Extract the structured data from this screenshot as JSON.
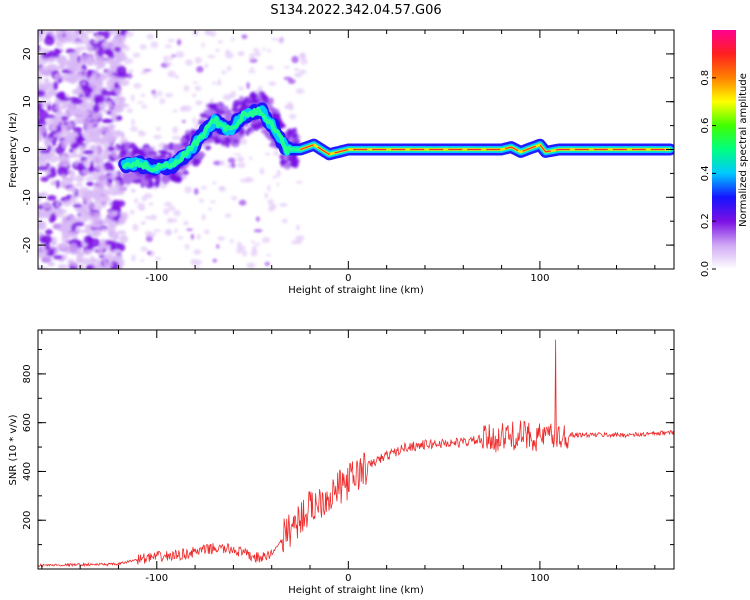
{
  "figure": {
    "title": "S134.2022.342.04.57.G06"
  },
  "chart_data": [
    {
      "type": "heatmap",
      "xlabel": "Height of straight line (km)",
      "ylabel": "Frequency (Hz)",
      "xlim": [
        -162,
        170
      ],
      "ylim": [
        -25,
        25
      ],
      "xticks": [
        -100,
        0,
        100
      ],
      "yticks": [
        -20,
        -10,
        0,
        10,
        20
      ],
      "ridge": {
        "x": [
          -117,
          -110,
          -100,
          -90,
          -80,
          -70,
          -62,
          -55,
          -45,
          -38,
          -32,
          -25,
          -18,
          -10,
          0,
          30,
          60,
          80,
          85,
          90,
          100,
          103,
          110,
          140,
          168
        ],
        "freq": [
          -3,
          -3,
          -4,
          -3,
          1,
          6,
          4,
          7,
          8,
          4,
          0,
          0,
          1,
          -1,
          0,
          0,
          0,
          0,
          0.5,
          -0.5,
          1,
          -0.5,
          0,
          0,
          0
        ]
      },
      "colorbar": {
        "label": "Normalized spectral amplitude",
        "range": [
          0,
          1
        ],
        "ticks": [
          "0.0",
          "0.2",
          "0.4",
          "0.6",
          "0.8"
        ],
        "colors": [
          "#ffffff",
          "#cfa8f4",
          "#7b10e4",
          "#1414ff",
          "#00c8ff",
          "#00ff80",
          "#40ff00",
          "#ffff00",
          "#ff8000",
          "#ff2020",
          "#ff0090"
        ]
      }
    },
    {
      "type": "line",
      "xlabel": "Height of straight line (km)",
      "ylabel": "SNR (10 * v/v)",
      "xlim": [
        -162,
        170
      ],
      "ylim": [
        0,
        980
      ],
      "xticks": [
        -100,
        0,
        100
      ],
      "yticks": [
        200,
        400,
        600,
        800
      ],
      "series": [
        {
          "color": "#ee2b2b",
          "x": [
            -162,
            -120,
            -110,
            -100,
            -90,
            -80,
            -70,
            -60,
            -50,
            -45,
            -40,
            -35,
            -30,
            -25,
            -20,
            -15,
            -10,
            -5,
            0,
            5,
            10,
            15,
            20,
            25,
            30,
            35,
            40,
            50,
            60,
            70,
            80,
            85,
            90,
            95,
            100,
            105,
            110,
            120,
            130,
            140,
            150,
            160,
            170
          ],
          "y": [
            15,
            20,
            40,
            50,
            55,
            70,
            85,
            80,
            50,
            45,
            60,
            120,
            170,
            210,
            250,
            280,
            300,
            330,
            360,
            390,
            420,
            445,
            465,
            480,
            500,
            505,
            510,
            515,
            520,
            530,
            540,
            545,
            550,
            545,
            540,
            545,
            550,
            550,
            550,
            550,
            550,
            555,
            560
          ]
        }
      ]
    }
  ]
}
